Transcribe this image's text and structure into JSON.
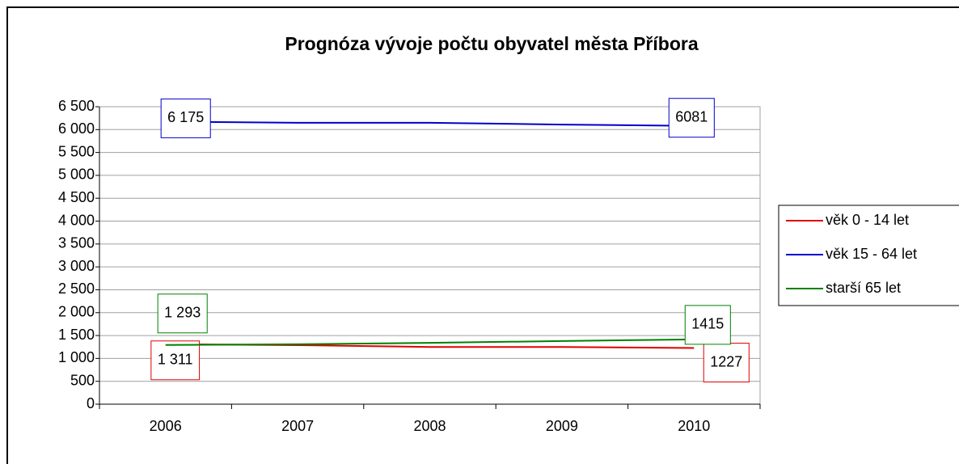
{
  "chart_data": {
    "type": "line",
    "title": "Prognóza vývoje počtu obyvatel města Příbora",
    "categories": [
      "2006",
      "2007",
      "2008",
      "2009",
      "2010"
    ],
    "series": [
      {
        "name": "věk 0 - 14 let",
        "color": "#e00000",
        "values": [
          1311,
          1290,
          1250,
          1250,
          1227
        ],
        "value_labels": [
          "1 311",
          null,
          null,
          null,
          "1227"
        ]
      },
      {
        "name": "věk 15 - 64 let",
        "color": "#0000cc",
        "values": [
          6175,
          6150,
          6150,
          6110,
          6081
        ],
        "value_labels": [
          "6 175",
          null,
          null,
          null,
          "6081"
        ]
      },
      {
        "name": "starší 65 let",
        "color": "#008000",
        "values": [
          1293,
          1310,
          1340,
          1380,
          1415
        ],
        "value_labels": [
          "1 293",
          null,
          null,
          null,
          "1415"
        ]
      }
    ],
    "ylim": [
      0,
      6500
    ],
    "yticks": [
      0,
      500,
      {
        "value": 1000,
        "label": "1 000"
      },
      {
        "value": 1500,
        "label": "1 500"
      },
      {
        "value": 2000,
        "label": "2 000"
      },
      {
        "value": 2500,
        "label": "2 500"
      },
      {
        "value": 3000,
        "label": "3 000"
      },
      {
        "value": 3500,
        "label": "3 500"
      },
      {
        "value": 4000,
        "label": "4 000"
      },
      {
        "value": 4500,
        "label": "4 500"
      },
      {
        "value": 5000,
        "label": "5 000"
      },
      {
        "value": 5500,
        "label": "5 500"
      },
      {
        "value": 6000,
        "label": "6 000"
      },
      {
        "value": 6500,
        "label": "6 500"
      }
    ],
    "grid": true,
    "legend": "right"
  }
}
